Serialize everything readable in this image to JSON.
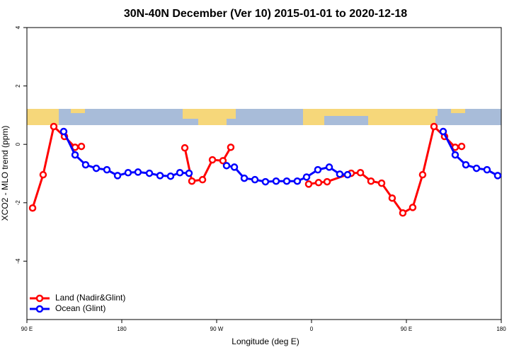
{
  "chart_data": {
    "type": "line",
    "title": "30N-40N December (Ver 10)   2015-01-01 to 2020-12-18",
    "xlabel": "Longitude (deg E)",
    "ylabel": "XCO2 - MLO trend (ppm)",
    "xlim": [
      90,
      540
    ],
    "xticks": [
      {
        "value": 90,
        "label": "90 E"
      },
      {
        "value": 180,
        "label": "180"
      },
      {
        "value": 270,
        "label": "90 W"
      },
      {
        "value": 360,
        "label": "0"
      },
      {
        "value": 450,
        "label": "90 E"
      },
      {
        "value": 540,
        "label": "180"
      }
    ],
    "ylim": [
      -6,
      4
    ],
    "yticks": [
      -4,
      -2,
      0,
      2,
      4
    ],
    "legend": "bottom-left",
    "series": [
      {
        "name": "Land (Nadir&Glint)",
        "color": "#ff0000",
        "x": [
          95.4,
          105.4,
          115.5,
          125.6,
          135.7,
          141.7,
          null,
          239.8,
          246.5,
          256.6,
          266.0,
          276.0,
          283.4,
          null,
          357.3,
          366.7,
          374.8,
          397.6,
          406.4,
          416.4,
          426.5,
          436.5,
          446.6,
          456.0,
          465.4,
          476.2,
          486.2,
          496.3,
          502.4
        ],
        "values": [
          -2.18,
          -1.04,
          0.61,
          0.27,
          -0.1,
          -0.07,
          null,
          -0.12,
          -1.26,
          -1.21,
          -0.53,
          -0.56,
          -0.1,
          null,
          -1.36,
          -1.31,
          -1.28,
          -0.99,
          -0.97,
          -1.26,
          -1.33,
          -1.84,
          -2.35,
          -2.16,
          -1.04,
          0.61,
          0.27,
          -0.1,
          -0.07
        ]
      },
      {
        "name": "Ocean (Glint)",
        "color": "#0000ff",
        "x": [
          124.9,
          135.7,
          145.7,
          155.8,
          165.9,
          176.0,
          186.0,
          195.4,
          206.2,
          216.3,
          226.3,
          235.1,
          243.8,
          null,
          279.4,
          286.8,
          296.2,
          306.3,
          316.3,
          326.4,
          336.5,
          346.5,
          355.3,
          366.0,
          376.8,
          386.8,
          394.2,
          null,
          484.9,
          496.3,
          506.4,
          516.5,
          526.5,
          536.6
        ],
        "values": [
          0.44,
          -0.36,
          -0.7,
          -0.82,
          -0.87,
          -1.07,
          -0.97,
          -0.95,
          -0.99,
          -1.07,
          -1.09,
          -0.97,
          -0.99,
          null,
          -0.73,
          -0.78,
          -1.16,
          -1.21,
          -1.28,
          -1.26,
          -1.26,
          -1.26,
          -1.12,
          -0.87,
          -0.78,
          -1.02,
          -1.04,
          null,
          0.44,
          -0.36,
          -0.7,
          -0.82,
          -0.87,
          -1.07
        ]
      }
    ]
  }
}
